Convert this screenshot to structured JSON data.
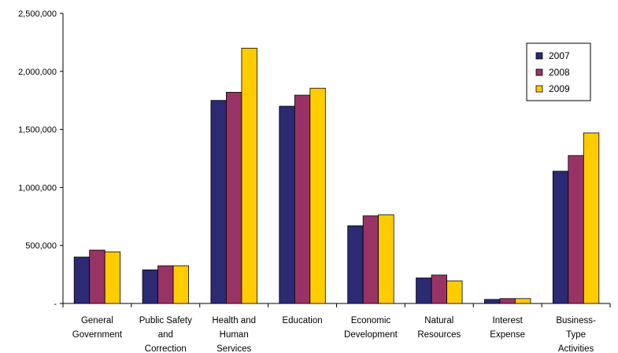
{
  "chart_data": {
    "type": "bar",
    "categories": [
      [
        "General",
        "Government"
      ],
      [
        "Public Safety",
        "and",
        "Correction"
      ],
      [
        "Health and",
        "Human",
        "Services"
      ],
      [
        "Education"
      ],
      [
        "Economic",
        "Development"
      ],
      [
        "Natural",
        "Resources"
      ],
      [
        "Interest",
        "Expense"
      ],
      [
        "Business-",
        "Type",
        "Activities"
      ]
    ],
    "series": [
      {
        "name": "2007",
        "color": "#2b2a73",
        "values": [
          400000,
          290000,
          1750000,
          1700000,
          670000,
          220000,
          35000,
          1140000
        ]
      },
      {
        "name": "2008",
        "color": "#993366",
        "values": [
          460000,
          325000,
          1820000,
          1795000,
          755000,
          245000,
          42000,
          1275000
        ]
      },
      {
        "name": "2009",
        "color": "#ffcc00",
        "values": [
          445000,
          325000,
          2200000,
          1855000,
          765000,
          195000,
          42000,
          1470000
        ]
      }
    ],
    "ylim": [
      0,
      2500000
    ],
    "yticks": [
      0,
      500000,
      1000000,
      1500000,
      2000000,
      2500000
    ],
    "ytick_labels": [
      "-",
      "500,000",
      "1,000,000",
      "1,500,000",
      "2,000,000",
      "2,500,000"
    ],
    "grid": false,
    "legend": "top-right"
  }
}
